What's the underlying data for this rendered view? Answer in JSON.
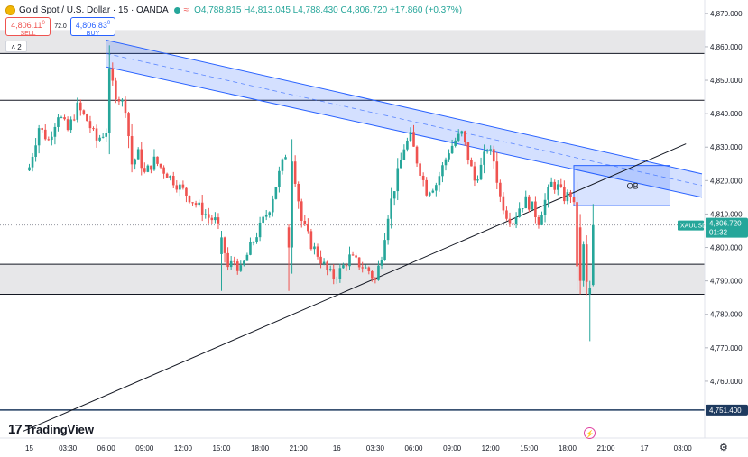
{
  "header": {
    "title": "Gold Spot / U.S. Dollar · 15 · OANDA",
    "ohlc": "O4,788.815 H4,813.045 L4,788.430 C4,806.720 +17.860 (+0.37%)",
    "sell_price": "4,806.11",
    "sell_sup": "0",
    "sell_label": "SELL",
    "spread": "72.0",
    "buy_price": "4,806.83",
    "buy_sup": "0",
    "buy_label": "BUY",
    "collapse_count": "2"
  },
  "branding": {
    "logo_text": "TradingView"
  },
  "colors": {
    "bull": "#26a69a",
    "bear": "#ef5350",
    "channel": "#2962ff",
    "channel_fill": "rgba(41,98,255,0.2)",
    "zone_fill": "rgba(120,123,134,0.18)",
    "hline": "#131722",
    "price_tag": "#26a69a",
    "alert_line": "#1e3a5f"
  },
  "chart_data": {
    "type": "candlestick",
    "symbol": "XAUUSD",
    "timeframe": "15",
    "y_axis": {
      "ticks": [
        "4,870.000",
        "4,860.000",
        "4,850.000",
        "4,840.000",
        "4,830.000",
        "4,820.000",
        "4,810.000",
        "4,800.000",
        "4,790.000",
        "4,780.000",
        "4,770.000",
        "4,760.000"
      ],
      "tick_values": [
        4870,
        4860,
        4850,
        4840,
        4830,
        4820,
        4810,
        4800,
        4790,
        4780,
        4770,
        4760
      ],
      "range": [
        4743,
        4874
      ]
    },
    "x_axis": {
      "ticks": [
        "15",
        "03:30",
        "06:00",
        "09:00",
        "12:00",
        "15:00",
        "18:00",
        "21:00",
        "16",
        "03:30",
        "06:00",
        "09:00",
        "12:00",
        "15:00",
        "18:00",
        "21:00",
        "17",
        "03:00"
      ],
      "tick_index": [
        0,
        12,
        24,
        36,
        48,
        60,
        72,
        84,
        96,
        108,
        120,
        132,
        144,
        156,
        168,
        180,
        192,
        204
      ],
      "bars_per_tick": 12
    },
    "current_price": {
      "label": "XAUUSD",
      "price": "4,806.720",
      "countdown": "01:32",
      "value": 4806.72
    },
    "alert_price": {
      "price": "4,751.400",
      "value": 4751.4
    },
    "zones": [
      {
        "from": 4858,
        "to": 4865
      },
      {
        "from": 4786,
        "to": 4795
      }
    ],
    "hlines": [
      4858,
      4844,
      4795,
      4786
    ],
    "channel": {
      "upper": [
        {
          "i": 24,
          "p": 4862
        },
        {
          "i": 210,
          "p": 4822
        }
      ],
      "lower": [
        {
          "i": 24,
          "p": 4854
        },
        {
          "i": 210,
          "p": 4815
        }
      ],
      "mid": [
        {
          "i": 24,
          "p": 4858
        },
        {
          "i": 210,
          "p": 4818.5
        }
      ]
    },
    "trendline": [
      {
        "i": -2,
        "p": 4745
      },
      {
        "i": 205,
        "p": 4831
      }
    ],
    "ob_box": {
      "label": "OB",
      "i1": 170,
      "i2": 200,
      "top": 4824.5,
      "bottom": 4812.5
    },
    "close_path": [
      [
        0,
        4824
      ],
      [
        3,
        4836
      ],
      [
        6,
        4832
      ],
      [
        9,
        4840
      ],
      [
        12,
        4835
      ],
      [
        15,
        4842
      ],
      [
        18,
        4838
      ],
      [
        21,
        4832
      ],
      [
        24,
        4835
      ],
      [
        25,
        4852
      ],
      [
        27,
        4846
      ],
      [
        30,
        4842
      ],
      [
        32,
        4825
      ],
      [
        34,
        4828
      ],
      [
        36,
        4822
      ],
      [
        39,
        4826
      ],
      [
        42,
        4823
      ],
      [
        44,
        4821
      ],
      [
        47,
        4818
      ],
      [
        50,
        4815
      ],
      [
        53,
        4812
      ],
      [
        56,
        4809
      ],
      [
        58,
        4808
      ],
      [
        60,
        4803
      ],
      [
        62,
        4794
      ],
      [
        64,
        4796
      ],
      [
        66,
        4793
      ],
      [
        69,
        4800
      ],
      [
        72,
        4806
      ],
      [
        75,
        4812
      ],
      [
        78,
        4822
      ],
      [
        80,
        4828
      ],
      [
        82,
        4827
      ],
      [
        85,
        4808
      ],
      [
        88,
        4801
      ],
      [
        90,
        4798
      ],
      [
        93,
        4793
      ],
      [
        95,
        4791
      ],
      [
        97,
        4793
      ],
      [
        100,
        4797
      ],
      [
        103,
        4795
      ],
      [
        106,
        4793
      ],
      [
        108,
        4790
      ],
      [
        110,
        4798
      ],
      [
        112,
        4810
      ],
      [
        115,
        4822
      ],
      [
        117,
        4830
      ],
      [
        119,
        4833
      ],
      [
        121,
        4826
      ],
      [
        124,
        4817
      ],
      [
        127,
        4819
      ],
      [
        129,
        4824
      ],
      [
        131,
        4829
      ],
      [
        133,
        4832
      ],
      [
        135,
        4834
      ],
      [
        137,
        4827
      ],
      [
        139,
        4820
      ],
      [
        141,
        4824
      ],
      [
        143,
        4830
      ],
      [
        145,
        4826
      ],
      [
        147,
        4815
      ],
      [
        149,
        4810
      ],
      [
        151,
        4808
      ],
      [
        153,
        4812
      ],
      [
        155,
        4814
      ],
      [
        157,
        4812
      ],
      [
        159,
        4808
      ],
      [
        161,
        4814
      ],
      [
        163,
        4819
      ],
      [
        165,
        4818
      ],
      [
        167,
        4815
      ],
      [
        169,
        4816
      ],
      [
        170,
        4812
      ],
      [
        171,
        4795
      ],
      [
        172,
        4790
      ],
      [
        173,
        4800
      ],
      [
        174,
        4789
      ],
      [
        175,
        4788
      ],
      [
        176,
        4807
      ]
    ]
  }
}
